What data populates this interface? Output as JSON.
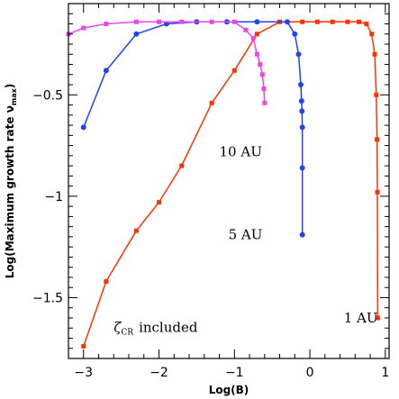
{
  "chart_data": {
    "type": "line",
    "xlabel": "Log(B)",
    "ylabel_main": "Log(Maximum growth rate ν",
    "ylabel_sub": "max",
    "ylabel_close": ")",
    "xlim": [
      -3.2,
      1.05
    ],
    "ylim": [
      -1.8,
      -0.05
    ],
    "x_ticks": [
      -3,
      -2,
      -1,
      0,
      1
    ],
    "x_tick_labels": [
      "−3",
      "−2",
      "−1",
      "0",
      "1"
    ],
    "y_ticks": [
      -0.5,
      -1,
      -1.5
    ],
    "y_tick_labels": [
      "−0.5",
      "−1",
      "−1.5"
    ],
    "annotation_zeta": "ζ",
    "annotation_cr": "CR",
    "annotation_included": "included",
    "series": [
      {
        "name": "1 AU",
        "color": "#ff3300",
        "marker": "square",
        "x": [
          -3.0,
          -2.7,
          -2.3,
          -2.0,
          -1.7,
          -1.3,
          -1.0,
          -0.7,
          -0.4,
          -0.1,
          0.1,
          0.3,
          0.5,
          0.65,
          0.75,
          0.82,
          0.86,
          0.88,
          0.89,
          0.895,
          0.9
        ],
        "y": [
          -1.74,
          -1.42,
          -1.17,
          -1.03,
          -0.85,
          -0.54,
          -0.38,
          -0.2,
          -0.14,
          -0.14,
          -0.14,
          -0.14,
          -0.14,
          -0.14,
          -0.15,
          -0.2,
          -0.3,
          -0.5,
          -0.72,
          -0.98,
          -1.6
        ]
      },
      {
        "name": "5 AU",
        "color": "#2244ee",
        "marker": "circle",
        "x": [
          -3.0,
          -2.7,
          -2.3,
          -1.9,
          -1.5,
          -1.1,
          -0.7,
          -0.3,
          -0.2,
          -0.15,
          -0.12,
          -0.11,
          -0.105,
          -0.1,
          -0.1,
          -0.1
        ],
        "y": [
          -0.66,
          -0.38,
          -0.2,
          -0.15,
          -0.14,
          -0.14,
          -0.14,
          -0.14,
          -0.2,
          -0.3,
          -0.45,
          -0.53,
          -0.58,
          -0.66,
          -0.86,
          -1.19
        ]
      },
      {
        "name": "10 AU",
        "color": "#ee44ee",
        "marker": "square",
        "x": [
          -3.2,
          -3.0,
          -2.7,
          -2.3,
          -2.0,
          -1.7,
          -1.3,
          -1.0,
          -0.85,
          -0.75,
          -0.7,
          -0.66,
          -0.63,
          -0.61,
          -0.6
        ],
        "y": [
          -0.2,
          -0.17,
          -0.15,
          -0.14,
          -0.14,
          -0.14,
          -0.14,
          -0.14,
          -0.18,
          -0.22,
          -0.3,
          -0.35,
          -0.4,
          -0.47,
          -0.54
        ]
      }
    ],
    "labels": [
      {
        "text": "1 AU",
        "x": 0.45,
        "y": -1.6
      },
      {
        "text": "5 AU",
        "x": -1.08,
        "y": -1.19
      },
      {
        "text": "10 AU",
        "x": -1.2,
        "y": -0.78
      }
    ]
  }
}
